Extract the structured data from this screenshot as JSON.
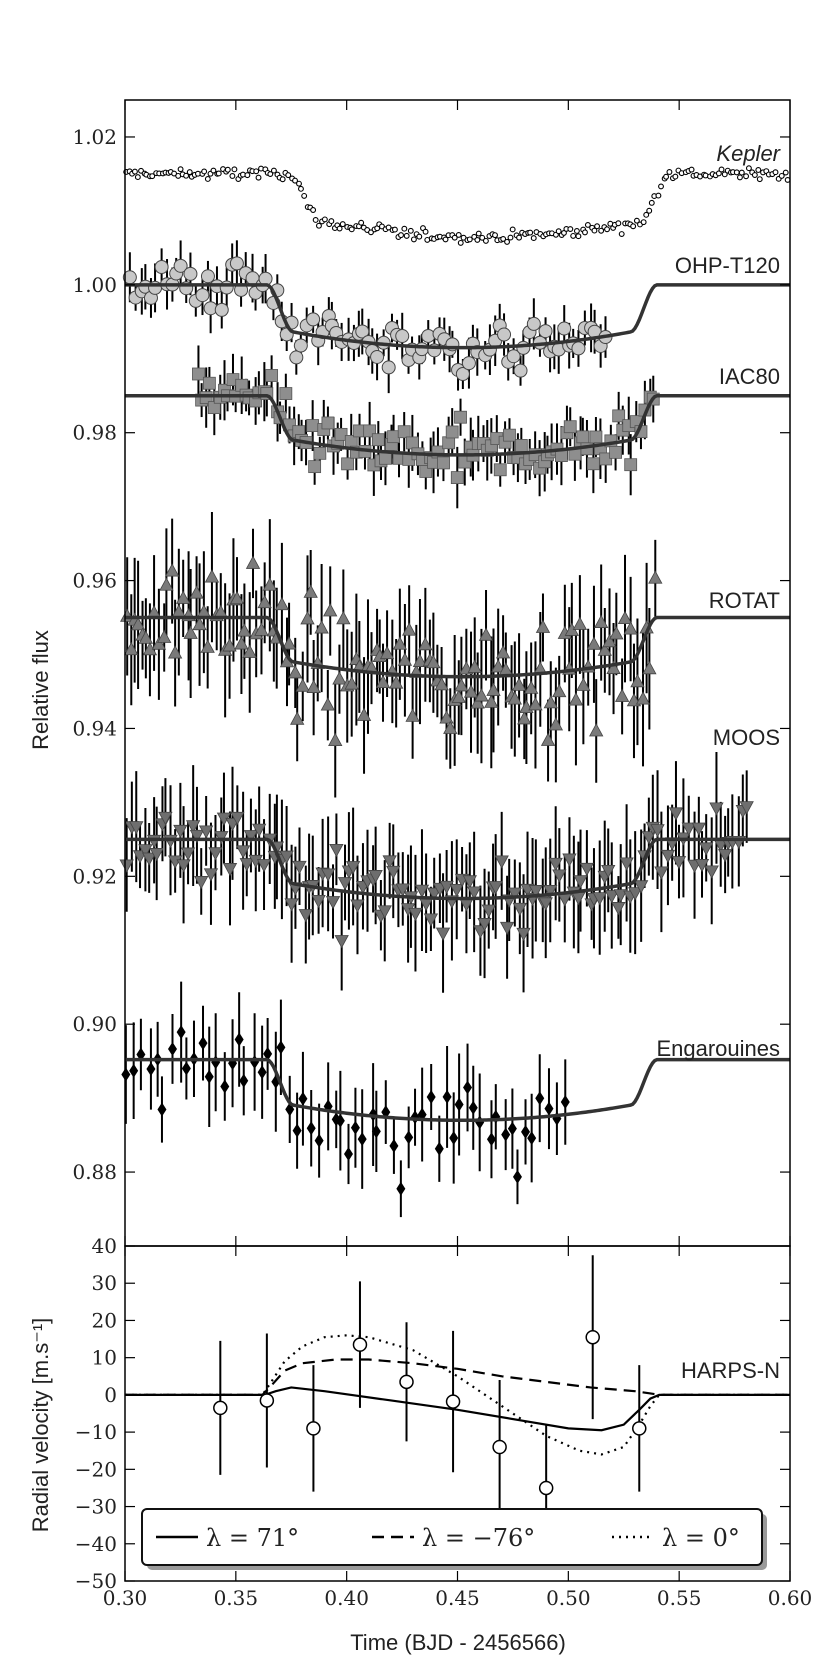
{
  "chart_data": [
    {
      "type": "scatter",
      "panel": "top",
      "ylabel": "Relative flux",
      "ylim": [
        0.87,
        1.025
      ],
      "xlim": [
        0.3,
        0.6
      ],
      "yticks": [
        "0.88",
        "0.90",
        "0.92",
        "0.94",
        "0.96",
        "0.98",
        "1.00",
        "1.02"
      ],
      "ytick_values": [
        0.88,
        0.9,
        0.92,
        0.94,
        0.96,
        0.98,
        1.0,
        1.02
      ],
      "series": [
        {
          "name": "Kepler",
          "baseline": 1.015,
          "depth": 0.0085,
          "t1": 0.375,
          "t4": 0.545,
          "x_range": [
            0.3,
            0.6
          ],
          "marker": "small-circle",
          "color": "#000000",
          "noise": 0.0007,
          "errbar": 0.0,
          "n": 220
        },
        {
          "name": "OHP-T120",
          "baseline": 1.0,
          "depth": 0.0085,
          "t1": 0.364,
          "t4": 0.54,
          "x_range": [
            0.302,
            0.518
          ],
          "marker": "circle",
          "color": "#c8c8c8",
          "noise": 0.0032,
          "errbar": 0.0025,
          "n": 95
        },
        {
          "name": "IAC80",
          "baseline": 0.985,
          "depth": 0.008,
          "t1": 0.364,
          "t4": 0.54,
          "x_range": [
            0.332,
            0.54
          ],
          "marker": "square",
          "color": "#8e8e8e",
          "noise": 0.003,
          "errbar": 0.003,
          "n": 105
        },
        {
          "name": "ROTAT",
          "baseline": 0.955,
          "depth": 0.008,
          "t1": 0.364,
          "t4": 0.54,
          "x_range": [
            0.3,
            0.54
          ],
          "marker": "triangle-up",
          "color": "#7a7a7a",
          "noise": 0.0065,
          "errbar": 0.0065,
          "n": 130
        },
        {
          "name": "MOOS",
          "baseline": 0.925,
          "depth": 0.008,
          "t1": 0.364,
          "t4": 0.54,
          "x_range": [
            0.3,
            0.582
          ],
          "marker": "triangle-down",
          "color": "#6e6e6e",
          "noise": 0.0045,
          "errbar": 0.006,
          "n": 140
        },
        {
          "name": "Engarouines",
          "baseline": 0.8952,
          "depth": 0.0082,
          "t1": 0.364,
          "t4": 0.54,
          "x_range": [
            0.3,
            0.5
          ],
          "marker": "diamond",
          "color": "#000000",
          "noise": 0.006,
          "errbar": 0.005,
          "n": 60
        }
      ]
    },
    {
      "type": "scatter",
      "panel": "bottom",
      "xlabel": "Time (BJD - 2456566)",
      "ylabel": "Radial velocity [m.s⁻¹]",
      "ylim": [
        -50,
        40
      ],
      "xlim": [
        0.3,
        0.6
      ],
      "xticks": [
        "0.30",
        "0.35",
        "0.40",
        "0.45",
        "0.50",
        "0.55",
        "0.60"
      ],
      "xtick_values": [
        0.3,
        0.35,
        0.4,
        0.45,
        0.5,
        0.55,
        0.6
      ],
      "yticks": [
        "−50",
        "−40",
        "−30",
        "−20",
        "−10",
        "0",
        "10",
        "20",
        "30",
        "40"
      ],
      "ytick_values": [
        -50,
        -40,
        -30,
        -20,
        -10,
        0,
        10,
        20,
        30,
        40
      ],
      "instrument": "HARPS-N",
      "points": [
        {
          "x": 0.343,
          "y": -3.5,
          "err": 18
        },
        {
          "x": 0.364,
          "y": -1.5,
          "err": 18
        },
        {
          "x": 0.385,
          "y": -9.0,
          "err": 17
        },
        {
          "x": 0.406,
          "y": 13.5,
          "err": 17
        },
        {
          "x": 0.427,
          "y": 3.5,
          "err": 16
        },
        {
          "x": 0.448,
          "y": -1.8,
          "err": 19
        },
        {
          "x": 0.469,
          "y": -14.0,
          "err": 18
        },
        {
          "x": 0.49,
          "y": -25.0,
          "err": 17
        },
        {
          "x": 0.511,
          "y": 15.5,
          "err": 22
        },
        {
          "x": 0.532,
          "y": -9.0,
          "err": 17
        }
      ],
      "models": [
        {
          "name": "λ = 71°",
          "style": "solid",
          "points": [
            [
              0.3,
              0
            ],
            [
              0.363,
              0
            ],
            [
              0.368,
              1.0
            ],
            [
              0.375,
              2.0
            ],
            [
              0.39,
              1.0
            ],
            [
              0.42,
              -1.5
            ],
            [
              0.45,
              -4.0
            ],
            [
              0.48,
              -7.0
            ],
            [
              0.5,
              -9.0
            ],
            [
              0.515,
              -9.5
            ],
            [
              0.525,
              -8.0
            ],
            [
              0.532,
              -4.0
            ],
            [
              0.537,
              -1.0
            ],
            [
              0.541,
              0
            ],
            [
              0.6,
              0
            ]
          ]
        },
        {
          "name": "λ = −76°",
          "style": "dashed",
          "points": [
            [
              0.3,
              0
            ],
            [
              0.362,
              0
            ],
            [
              0.366,
              2.5
            ],
            [
              0.372,
              6.5
            ],
            [
              0.38,
              8.5
            ],
            [
              0.395,
              9.5
            ],
            [
              0.41,
              9.5
            ],
            [
              0.43,
              8.5
            ],
            [
              0.45,
              7.0
            ],
            [
              0.47,
              5.0
            ],
            [
              0.49,
              3.5
            ],
            [
              0.51,
              2.0
            ],
            [
              0.53,
              1.0
            ],
            [
              0.537,
              0.4
            ],
            [
              0.541,
              0
            ],
            [
              0.6,
              0
            ]
          ]
        },
        {
          "name": "λ = 0°",
          "style": "dotted",
          "points": [
            [
              0.3,
              0
            ],
            [
              0.362,
              0
            ],
            [
              0.366,
              3.5
            ],
            [
              0.372,
              9.0
            ],
            [
              0.38,
              13.0
            ],
            [
              0.39,
              15.5
            ],
            [
              0.4,
              16.0
            ],
            [
              0.41,
              15.5
            ],
            [
              0.43,
              12.0
            ],
            [
              0.45,
              5.0
            ],
            [
              0.47,
              -3.0
            ],
            [
              0.49,
              -11.0
            ],
            [
              0.505,
              -15.0
            ],
            [
              0.515,
              -16.0
            ],
            [
              0.525,
              -14.0
            ],
            [
              0.532,
              -8.0
            ],
            [
              0.537,
              -3.0
            ],
            [
              0.541,
              0
            ],
            [
              0.6,
              0
            ]
          ]
        }
      ],
      "legend": [
        "λ = 71°",
        "λ = −76°",
        "λ = 0°"
      ],
      "legend_placement": "lower-center"
    }
  ]
}
